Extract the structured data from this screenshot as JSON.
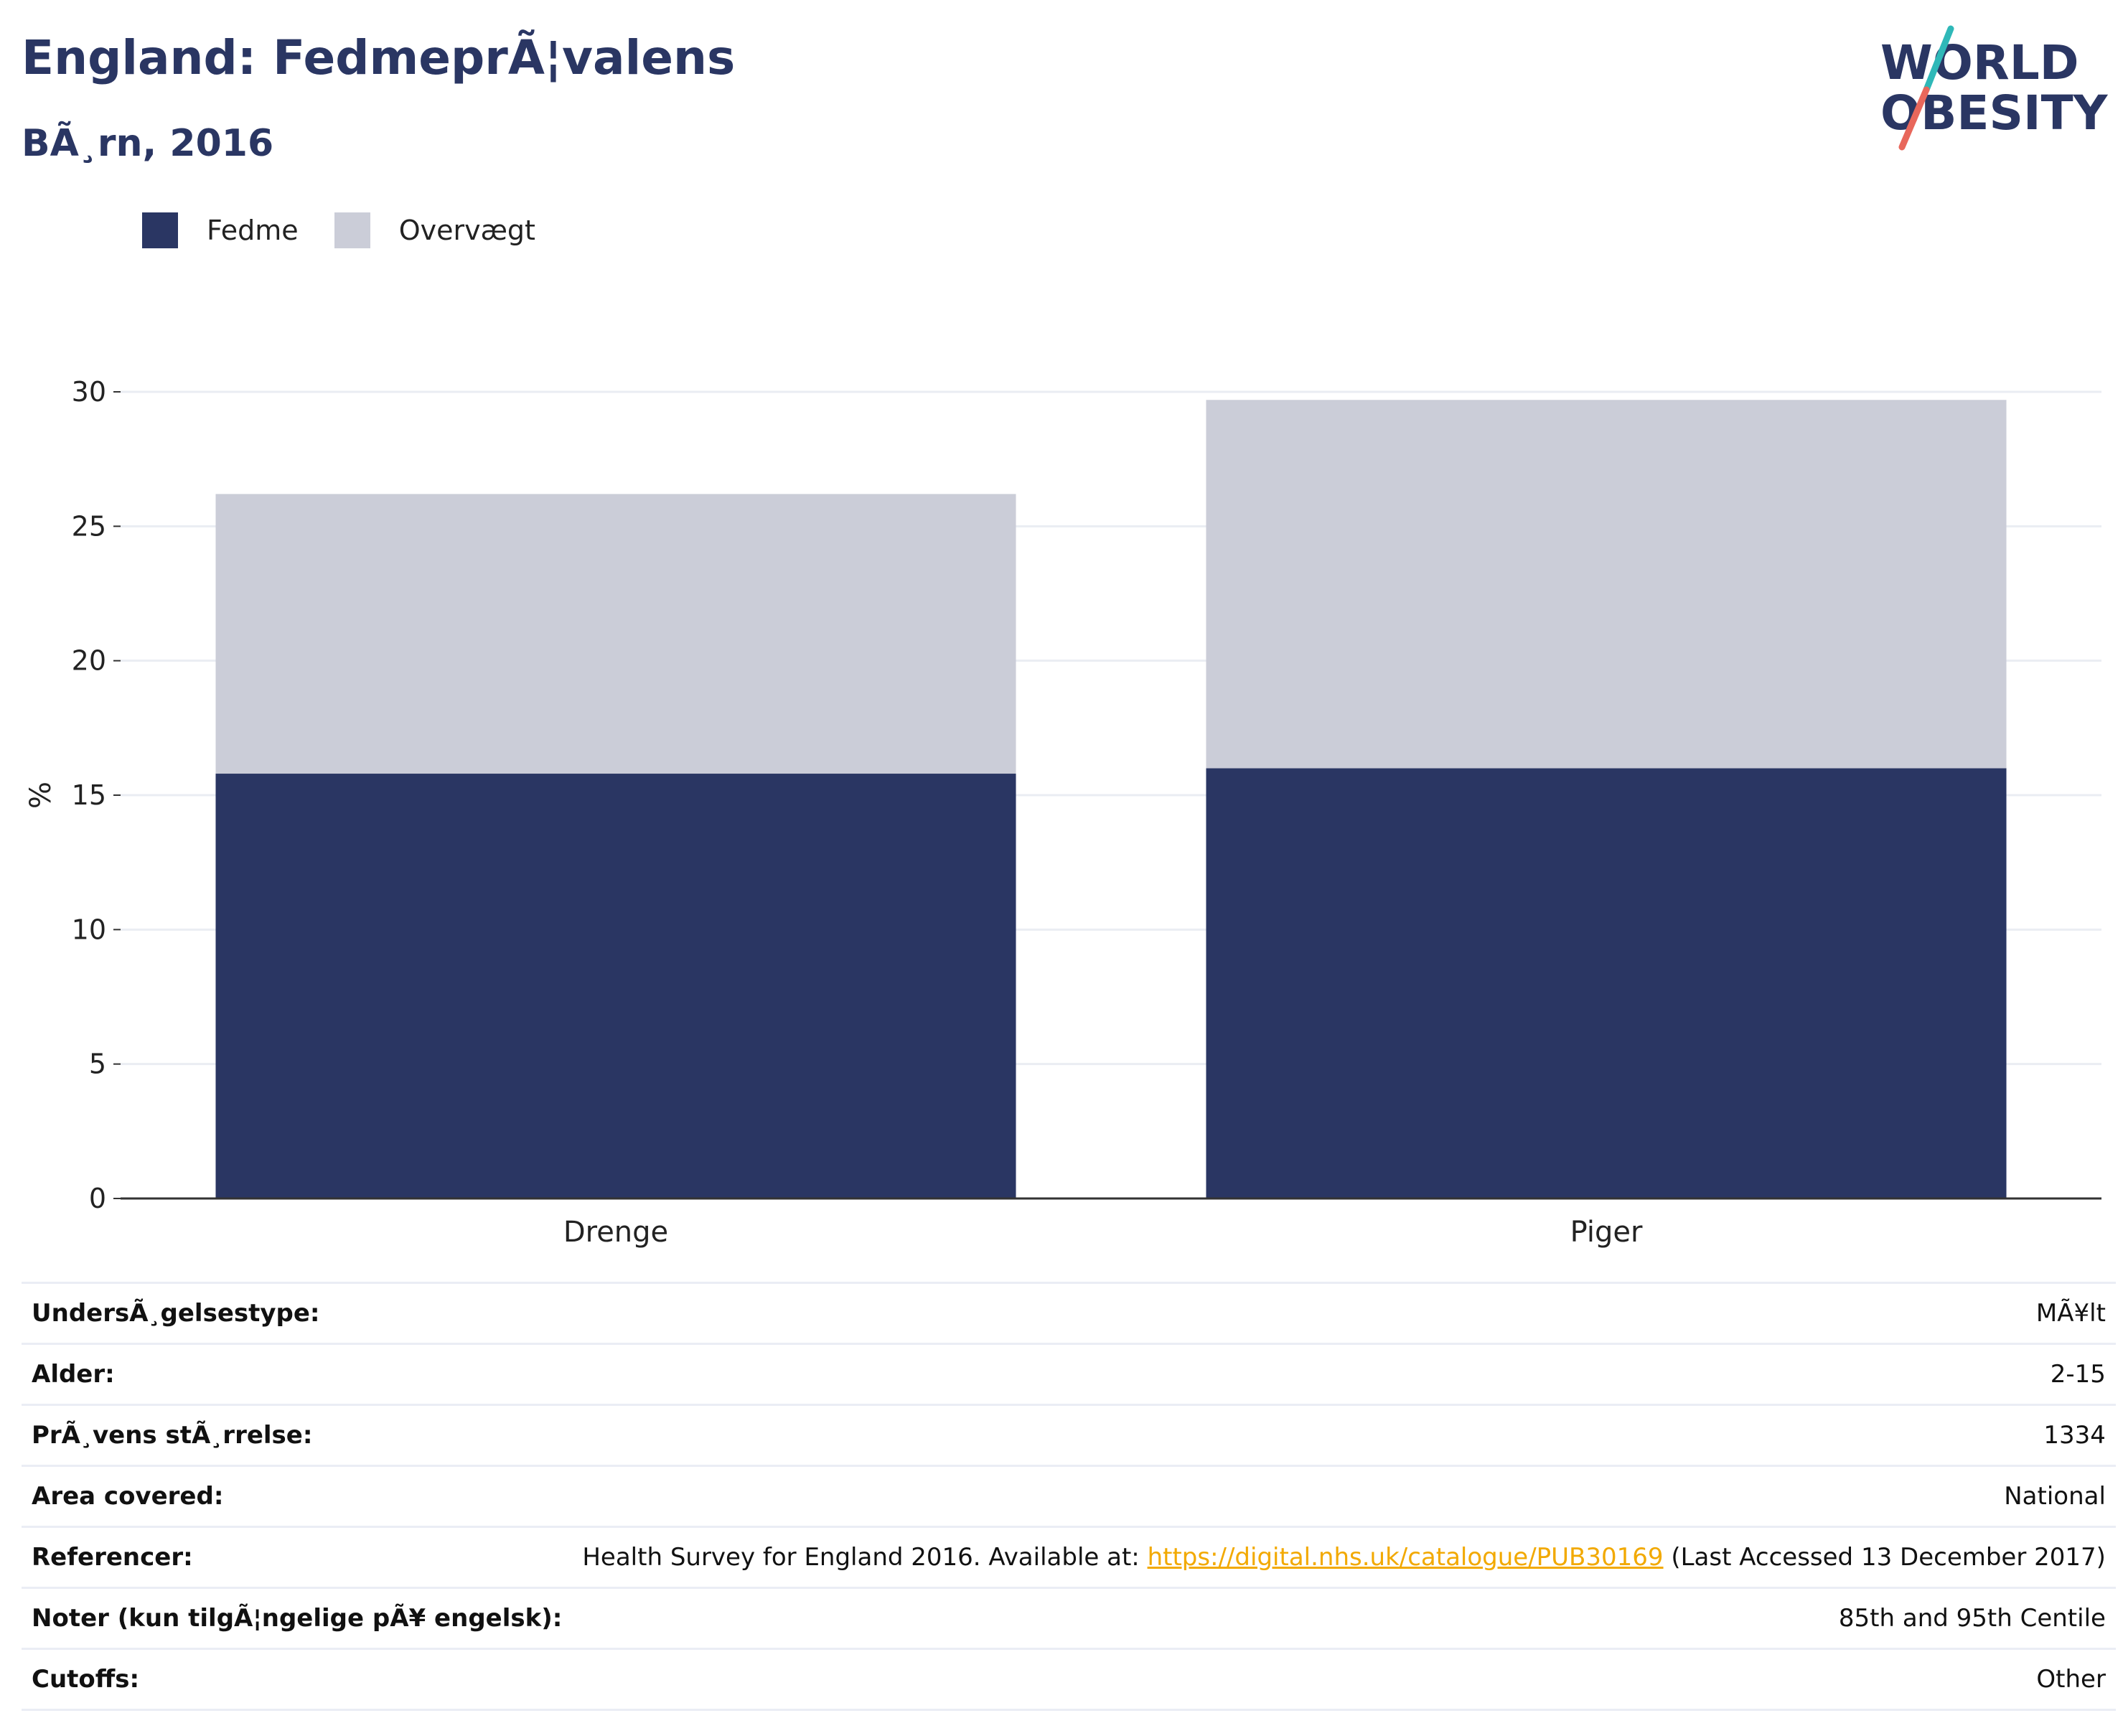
{
  "header": {
    "title": "England: FedmeprÃ¦valens",
    "subtitle": "BÃ¸rn, 2016"
  },
  "logo": {
    "line1": "WORLD",
    "line2": "OBESITY",
    "icon": "world-obesity-logo"
  },
  "colors": {
    "fedme": "#2a3663",
    "overvaegt": "#cbcdd8",
    "link": "#f2a900",
    "grid": "#eaedf3",
    "axis": "#333333"
  },
  "legend": [
    {
      "label": "Fedme",
      "color": "#2a3663"
    },
    {
      "label": "Overvægt",
      "color": "#cbcdd8"
    }
  ],
  "chart_data": {
    "type": "bar",
    "stacked": true,
    "categories": [
      "Drenge",
      "Piger"
    ],
    "series": [
      {
        "name": "Fedme",
        "values": [
          15.8,
          16.0
        ]
      },
      {
        "name": "Overvægt",
        "values": [
          10.4,
          13.7
        ]
      }
    ],
    "ylabel": "%",
    "ylim": [
      0,
      30
    ],
    "yticks": [
      0,
      5,
      10,
      15,
      20,
      25,
      30
    ],
    "grid": true,
    "legend_position": "top-left"
  },
  "meta": {
    "rows": [
      {
        "key": "UndersÃ¸gelsestype:",
        "value": "MÃ¥lt"
      },
      {
        "key": "Alder:",
        "value": "2-15"
      },
      {
        "key": "PrÃ¸vens stÃ¸rrelse:",
        "value": "1334"
      },
      {
        "key": "Area covered:",
        "value": "National"
      },
      {
        "key": "Referencer:",
        "pre": "Health Survey for England 2016. Available at: ",
        "link": "https://digital.nhs.uk/catalogue/PUB30169",
        "post": " (Last Accessed 13 December 2017)"
      },
      {
        "key": "Noter (kun tilgÃ¦ngelige pÃ¥ engelsk):",
        "value": "85th and 95th Centile"
      },
      {
        "key": "Cutoffs:",
        "value": "Other"
      }
    ]
  }
}
